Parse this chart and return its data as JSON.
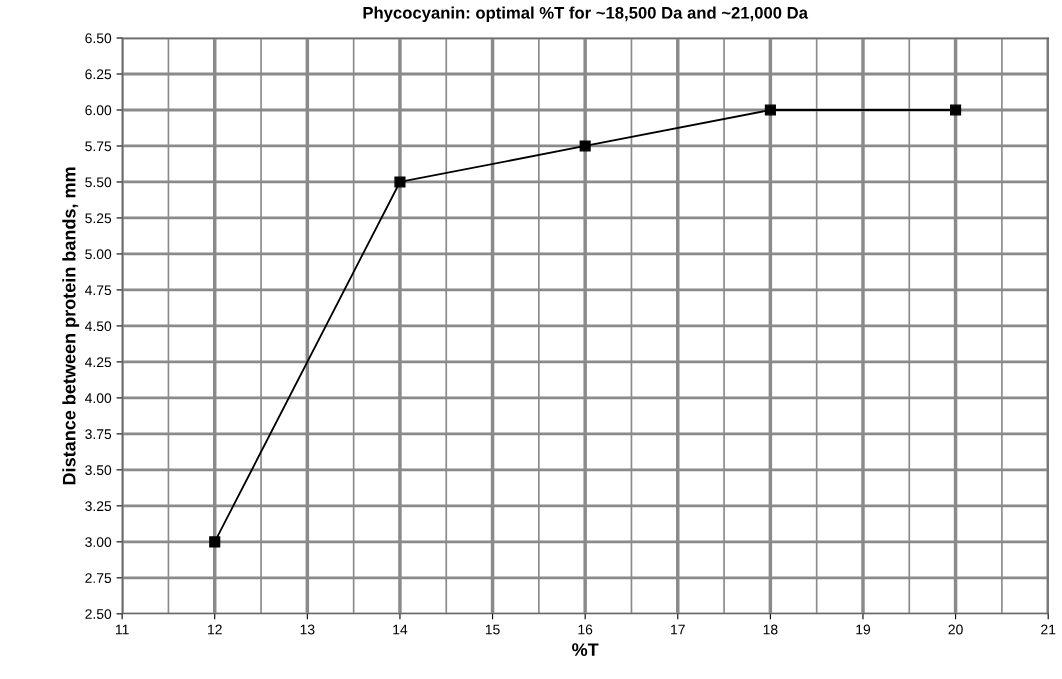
{
  "chart_data": {
    "type": "line",
    "title": "Phycocyanin: optimal %T for ~18,500 Da and ~21,000 Da",
    "xlabel": "%T",
    "ylabel": "Distance between protein bands, mm",
    "x": [
      12,
      14,
      16,
      18,
      20
    ],
    "series": [
      {
        "color": "#000000",
        "values": [
          3.0,
          5.5,
          5.75,
          6.0,
          6.0
        ]
      }
    ],
    "xlim": [
      11,
      21
    ],
    "xticks": [
      11,
      12,
      13,
      14,
      15,
      16,
      17,
      18,
      19,
      20,
      21
    ],
    "ylim": [
      2.5,
      6.5
    ],
    "yticks": [
      {
        "value": 2.5,
        "label": "2.50"
      },
      {
        "value": 2.75,
        "label": "2.75"
      },
      {
        "value": 3.0,
        "label": "3.00"
      },
      {
        "value": 3.25,
        "label": "3.25"
      },
      {
        "value": 3.5,
        "label": "3.50"
      },
      {
        "value": 3.75,
        "label": "3.75"
      },
      {
        "value": 4.0,
        "label": "4.00"
      },
      {
        "value": 4.25,
        "label": "4.25"
      },
      {
        "value": 4.5,
        "label": "4.50"
      },
      {
        "value": 4.75,
        "label": "4.75"
      },
      {
        "value": 5.0,
        "label": "5.00"
      },
      {
        "value": 5.25,
        "label": "5.25"
      },
      {
        "value": 5.5,
        "label": "5.50"
      },
      {
        "value": 5.75,
        "label": "5.75"
      },
      {
        "value": 6.0,
        "label": "6.00"
      },
      {
        "value": 6.25,
        "label": "6.25"
      },
      {
        "value": 6.5,
        "label": "6.50"
      }
    ],
    "grid": true,
    "marker": "square",
    "line_style": "solid"
  }
}
